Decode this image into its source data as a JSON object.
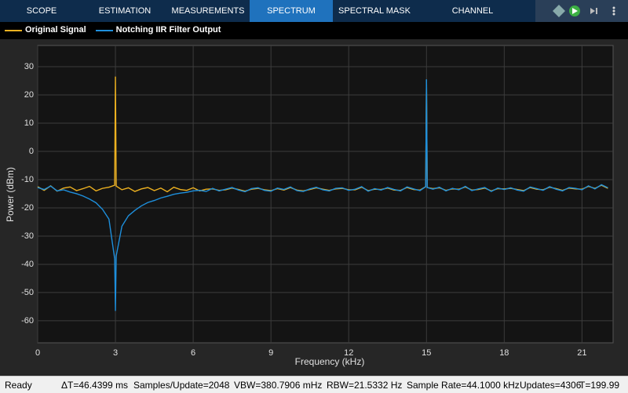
{
  "toolbar": {
    "tabs": [
      {
        "label": "SCOPE",
        "active": false
      },
      {
        "label": "ESTIMATION",
        "active": false
      },
      {
        "label": "MEASUREMENTS",
        "active": false
      },
      {
        "label": "SPECTRUM",
        "active": true
      },
      {
        "label": "SPECTRAL MASK",
        "active": false
      },
      {
        "label": "CHANNEL MEASUREMENTS",
        "active": false
      }
    ]
  },
  "chart_data": {
    "type": "line",
    "xlabel": "Frequency (kHz)",
    "ylabel": "Power (dBm)",
    "x": [
      0,
      0.25,
      0.5,
      0.75,
      1,
      1.25,
      1.5,
      1.75,
      2,
      2.25,
      2.5,
      2.75,
      2.97,
      3,
      3.03,
      3.25,
      3.5,
      3.75,
      4,
      4.25,
      4.5,
      4.75,
      5,
      5.25,
      5.5,
      5.75,
      6,
      6.25,
      6.5,
      6.75,
      7,
      7.25,
      7.5,
      7.75,
      8,
      8.25,
      8.5,
      8.75,
      9,
      9.25,
      9.5,
      9.75,
      10,
      10.25,
      10.5,
      10.75,
      11,
      11.25,
      11.5,
      11.75,
      12,
      12.25,
      12.5,
      12.75,
      13,
      13.25,
      13.5,
      13.75,
      14,
      14.25,
      14.5,
      14.75,
      14.97,
      15,
      15.03,
      15.25,
      15.5,
      15.75,
      16,
      16.25,
      16.5,
      16.75,
      17,
      17.25,
      17.5,
      17.75,
      18,
      18.25,
      18.5,
      18.75,
      19,
      19.25,
      19.5,
      19.75,
      20,
      20.25,
      20.5,
      20.75,
      21,
      21.25,
      21.5,
      21.75,
      22
    ],
    "series": [
      {
        "name": "Original Signal",
        "color": "#edb120",
        "values": [
          -12.5,
          -13.8,
          -12.2,
          -14.1,
          -13.0,
          -12.6,
          -13.9,
          -13.2,
          -12.4,
          -14.0,
          -13.1,
          -12.7,
          -12.0,
          26.5,
          -12.3,
          -13.6,
          -12.9,
          -14.2,
          -13.3,
          -12.8,
          -13.9,
          -13.0,
          -14.3,
          -12.7,
          -13.5,
          -13.8,
          -12.9,
          -14.0,
          -13.4,
          -13.3,
          -13.8,
          -13.6,
          -13.0,
          -13.5,
          -14.1,
          -13.4,
          -13.1,
          -13.6,
          -13.9,
          -13.2,
          -13.7,
          -12.8,
          -13.7,
          -14.0,
          -13.5,
          -12.9,
          -13.4,
          -13.8,
          -13.3,
          -13.1,
          -13.6,
          -13.6,
          -12.7,
          -13.9,
          -13.4,
          -13.5,
          -13.0,
          -13.7,
          -13.8,
          -12.8,
          -13.5,
          -13.7,
          -12.5,
          25.4,
          -12.8,
          -13.2,
          -12.9,
          -13.8,
          -13.3,
          -13.4,
          -12.6,
          -13.7,
          -13.5,
          -13.0,
          -14.0,
          -13.2,
          -13.3,
          -13.1,
          -13.5,
          -13.9,
          -12.8,
          -13.4,
          -13.6,
          -12.7,
          -13.2,
          -13.8,
          -13.0,
          -13.3,
          -13.4,
          -12.4,
          -13.1,
          -12.0,
          -13.1
        ]
      },
      {
        "name": "Notching IIR Filter Output",
        "color": "#1e8fdc",
        "values": [
          -12.8,
          -13.5,
          -12.3,
          -14.0,
          -13.6,
          -14.4,
          -15.0,
          -15.8,
          -16.9,
          -18.2,
          -20.5,
          -24.0,
          -38.0,
          -56.5,
          -37.0,
          -26.5,
          -22.8,
          -20.9,
          -19.3,
          -18.1,
          -17.4,
          -16.5,
          -15.9,
          -15.2,
          -14.8,
          -14.5,
          -14.0,
          -13.8,
          -14.2,
          -13.1,
          -14.0,
          -13.4,
          -12.8,
          -13.7,
          -14.3,
          -13.2,
          -12.9,
          -13.8,
          -14.1,
          -13.0,
          -13.5,
          -12.6,
          -13.9,
          -14.2,
          -13.3,
          -12.7,
          -13.6,
          -14.0,
          -13.1,
          -12.9,
          -13.8,
          -13.4,
          -12.5,
          -14.1,
          -13.2,
          -13.7,
          -12.8,
          -13.5,
          -14.0,
          -12.6,
          -13.3,
          -13.9,
          -12.5,
          25.5,
          -12.8,
          -13.4,
          -12.7,
          -14.0,
          -13.1,
          -13.6,
          -12.4,
          -13.9,
          -13.3,
          -12.8,
          -14.2,
          -13.0,
          -13.5,
          -12.9,
          -13.7,
          -14.1,
          -12.6,
          -13.2,
          -13.8,
          -12.5,
          -13.4,
          -14.0,
          -12.8,
          -13.1,
          -13.6,
          -12.2,
          -13.3,
          -11.8,
          -12.9
        ]
      }
    ],
    "xlim": [
      0,
      22.2
    ],
    "ylim": [
      -67.8,
      37.5
    ],
    "xticks": [
      0,
      3,
      6,
      9,
      12,
      15,
      18,
      21
    ],
    "yticks": [
      -60,
      -50,
      -40,
      -30,
      -20,
      -10,
      0,
      10,
      20,
      30
    ],
    "grid": true,
    "legend": "top-left"
  },
  "status": [
    "Ready",
    "ΔT=46.4399 ms",
    "Samples/Update=2048",
    "VBW=380.7906 mHz",
    "RBW=21.5332 Hz",
    "Sample Rate=44.1000 kHz",
    "Updates=4306",
    "T=199.99"
  ]
}
